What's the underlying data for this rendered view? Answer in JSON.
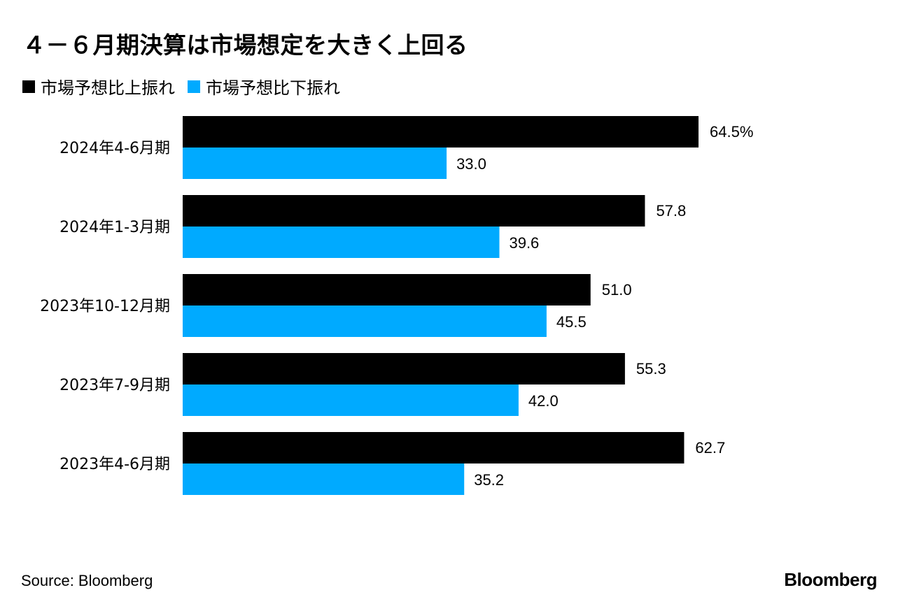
{
  "title": "４－６月期決算は市場想定を大きく上回る",
  "legend": [
    {
      "label": "市場予想比上振れ",
      "color": "#000000"
    },
    {
      "label": "市場予想比下振れ",
      "color": "#00aaff"
    }
  ],
  "chart_data": {
    "type": "bar",
    "orientation": "horizontal",
    "categories": [
      "2024年4-6月期",
      "2024年1-3月期",
      "2023年10-12月期",
      "2023年7-9月期",
      "2023年4-6月期"
    ],
    "series": [
      {
        "name": "市場予想比上振れ",
        "color": "#000000",
        "values": [
          64.5,
          57.8,
          51.0,
          55.3,
          62.7
        ]
      },
      {
        "name": "市場予想比下振れ",
        "color": "#00aaff",
        "values": [
          33.0,
          39.6,
          45.5,
          42.0,
          35.2
        ]
      }
    ],
    "value_labels": [
      [
        "64.5%",
        "57.8",
        "51.0",
        "55.3",
        "62.7"
      ],
      [
        "33.0",
        "39.6",
        "45.5",
        "42.0",
        "35.2"
      ]
    ],
    "grid": false
  },
  "footer": {
    "source": "Source: Bloomberg",
    "brand": "Bloomberg"
  }
}
